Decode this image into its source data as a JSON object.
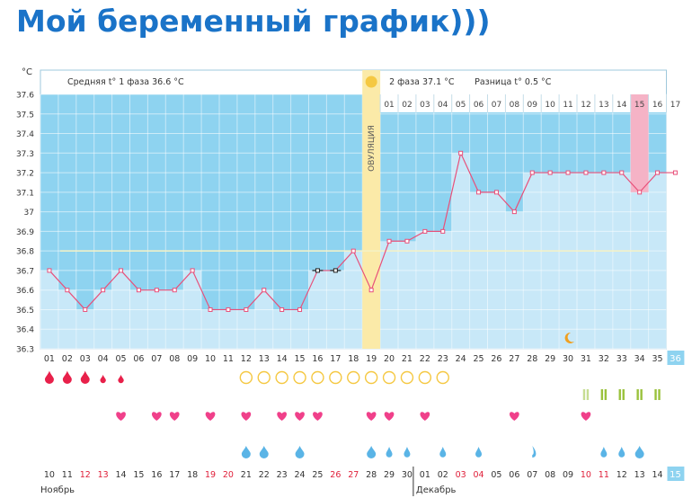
{
  "page_title": "Мой беременный график)))",
  "chart_data": {
    "type": "line",
    "unit_label": "°C",
    "yticks": [
      "37.6",
      "37.5",
      "37.4",
      "37.3",
      "37.2",
      "37.1",
      "37",
      "36.9",
      "36.8",
      "36.7",
      "36.6",
      "36.5",
      "36.4",
      "36.3"
    ],
    "ylim": [
      36.3,
      37.6
    ],
    "phase1_label": "Средняя t° 1 фаза 36.6 °C",
    "phase2_label": "2 фаза 37.1 °C",
    "diff_label": "Разница t° 0.5 °C",
    "ovulation_label": "ОВУЛЯЦИЯ",
    "phase1_mean": 36.6,
    "phase2_mean": 37.1,
    "cover_line": 36.8,
    "ovulation_day": 19,
    "phase2_days": [
      "01",
      "02",
      "03",
      "04",
      "05",
      "06",
      "07",
      "08",
      "09",
      "10",
      "11",
      "12",
      "13",
      "14",
      "15",
      "16",
      "17"
    ],
    "highlight_phase2_day": "15",
    "cycle_days": [
      "01",
      "02",
      "03",
      "04",
      "05",
      "06",
      "07",
      "08",
      "09",
      "10",
      "11",
      "12",
      "13",
      "14",
      "15",
      "16",
      "17",
      "18",
      "19",
      "20",
      "21",
      "22",
      "23",
      "24",
      "25",
      "26",
      "27",
      "28",
      "29",
      "30",
      "31",
      "32",
      "33",
      "34",
      "35",
      "36"
    ],
    "current_cycle_day": "36",
    "temperatures": [
      36.7,
      36.6,
      36.5,
      36.6,
      36.7,
      36.6,
      36.6,
      36.6,
      36.7,
      36.5,
      36.5,
      36.5,
      36.6,
      36.5,
      36.5,
      36.7,
      36.7,
      36.8,
      36.6,
      36.85,
      36.85,
      36.9,
      36.9,
      37.3,
      37.1,
      37.1,
      37.0,
      37.2,
      37.2,
      37.2,
      37.2,
      37.2,
      37.2,
      37.1,
      37.2,
      37.2
    ],
    "calendar_dates": [
      "10",
      "11",
      "12",
      "13",
      "14",
      "15",
      "16",
      "17",
      "18",
      "19",
      "20",
      "21",
      "22",
      "23",
      "24",
      "25",
      "26",
      "27",
      "28",
      "29",
      "30",
      "01",
      "02",
      "03",
      "04",
      "05",
      "06",
      "07",
      "08",
      "09",
      "10",
      "11",
      "12",
      "13",
      "14",
      "15"
    ],
    "red_dates": [
      2,
      3,
      9,
      10,
      16,
      17,
      23,
      24,
      30,
      31
    ],
    "current_date": "15",
    "month_labels": [
      "Ноябрь",
      "Декабрь"
    ],
    "symbol_colors": {
      "fill": "#c8e8f8",
      "sky": "#8ed3f0",
      "line": "#e8507a",
      "ovulation": "#fbeaa8",
      "blood": "#e8204a",
      "heart": "#f0408a",
      "circle": "#f5c842",
      "drop": "#5ab4e6",
      "test": "#9ac23c",
      "highlight": "#f5b3c6",
      "title": "#1a73c8"
    },
    "bleeding": [
      {
        "day": 1,
        "size": "big"
      },
      {
        "day": 2,
        "size": "big"
      },
      {
        "day": 3,
        "size": "big"
      },
      {
        "day": 4,
        "size": "small"
      },
      {
        "day": 5,
        "size": "small"
      }
    ],
    "circles": [
      12,
      13,
      14,
      15,
      16,
      17,
      18,
      19,
      20,
      21,
      22,
      23
    ],
    "hearts": [
      5,
      7,
      8,
      10,
      12,
      14,
      15,
      16,
      19,
      20,
      22,
      27,
      31
    ],
    "tests": [
      {
        "day": 31,
        "faint": true
      },
      {
        "day": 32,
        "faint": false
      },
      {
        "day": 33,
        "faint": false
      },
      {
        "day": 34,
        "faint": false
      },
      {
        "day": 35,
        "faint": false
      }
    ],
    "drops": [
      {
        "day": 12,
        "type": "full"
      },
      {
        "day": 13,
        "type": "full"
      },
      {
        "day": 15,
        "type": "full"
      },
      {
        "day": 19,
        "type": "full"
      },
      {
        "day": 20,
        "type": "small"
      },
      {
        "day": 21,
        "type": "small"
      },
      {
        "day": 23,
        "type": "small"
      },
      {
        "day": 25,
        "type": "small"
      },
      {
        "day": 28,
        "type": "half"
      },
      {
        "day": 32,
        "type": "small"
      },
      {
        "day": 33,
        "type": "small"
      },
      {
        "day": 34,
        "type": "full"
      }
    ],
    "moon_day": 30,
    "sun_icon": "sun-icon",
    "moon_icon": "moon-icon"
  }
}
